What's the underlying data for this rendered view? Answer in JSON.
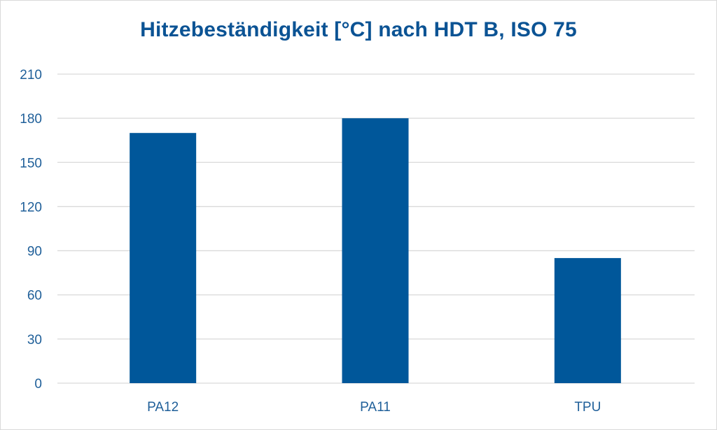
{
  "chart_data": {
    "type": "bar",
    "title": "Hitzebeständigkeit [°C]  nach HDT B, ISO 75",
    "xlabel": "",
    "ylabel": "",
    "categories": [
      "PA12",
      "PA11",
      "TPU"
    ],
    "values": [
      170,
      180,
      85
    ],
    "ylim": [
      0,
      210
    ],
    "yticks": [
      0,
      30,
      60,
      90,
      120,
      150,
      180,
      210
    ],
    "grid": true,
    "bar_color": "#00579a",
    "grid_color": "#d9d9d9",
    "text_color": "#1f5f99"
  }
}
